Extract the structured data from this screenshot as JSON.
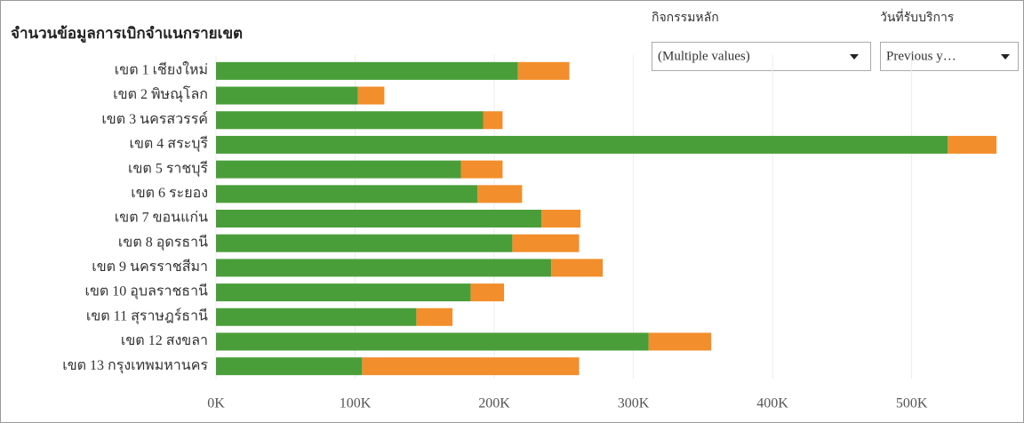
{
  "chart_data": {
    "type": "stacked-bar-horizontal",
    "title": "จำนวนข้อมูลการเบิกจำแนกรายเขต",
    "categories": [
      "เขต 1 เชียงใหม่",
      "เขต 2 พิษณุโลก",
      "เขต 3 นครสวรรค์",
      "เขต 4 สระบุรี",
      "เขต 5 ราชบุรี",
      "เขต 6 ระยอง",
      "เขต 7 ขอนแก่น",
      "เขต 8 อุดรธานี",
      "เขต 9 นครราชสีมา",
      "เขต 10 อุบลราชธานี",
      "เขต 11 สุราษฎร์ธานี",
      "เขต 12 สงขลา",
      "เขต 13 กรุงเทพมหานคร"
    ],
    "series": [
      {
        "color": "#4a9e3a",
        "values": [
          217000,
          102000,
          192000,
          526000,
          176000,
          188000,
          234000,
          213000,
          241000,
          183000,
          144000,
          311000,
          105000
        ]
      },
      {
        "color": "#f28e2b",
        "values": [
          37000,
          19000,
          14000,
          35000,
          30000,
          32000,
          28000,
          48000,
          37000,
          24000,
          26000,
          45000,
          156000
        ]
      }
    ],
    "xlim": [
      0,
      575000
    ],
    "xticks": [
      {
        "value": 0,
        "label": "0K"
      },
      {
        "value": 100000,
        "label": "100K"
      },
      {
        "value": 200000,
        "label": "200K"
      },
      {
        "value": 300000,
        "label": "300K"
      },
      {
        "value": 400000,
        "label": "400K"
      },
      {
        "value": 500000,
        "label": "500K"
      }
    ],
    "grid": true
  },
  "filters": [
    {
      "label": "กิจกรรมหลัก",
      "value": "(Multiple values)"
    },
    {
      "label": "วันที่รับบริการ",
      "value": "Previous y…"
    }
  ]
}
